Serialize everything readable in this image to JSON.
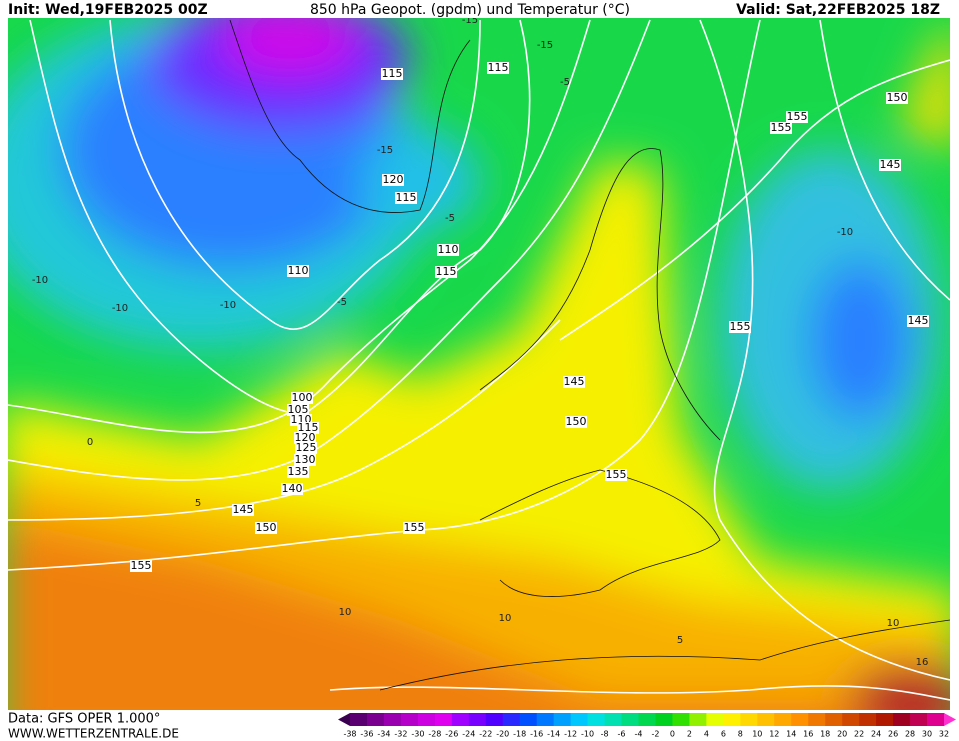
{
  "header": {
    "init": "Init: Wed,19FEB2025 00Z",
    "title": "850 hPa Geopot. (gpdm) und Temperatur (°C)",
    "valid": "Valid: Sat,22FEB2025 18Z"
  },
  "footer": {
    "data": "Data: GFS OPER 1.000°",
    "site": "WWW.WETTERZENTRALE.DE"
  },
  "colorbar": {
    "ticks": [
      -38,
      -36,
      -34,
      -32,
      -30,
      -28,
      -26,
      -24,
      -22,
      -20,
      -18,
      -16,
      -14,
      -12,
      -10,
      -8,
      -6,
      -4,
      -2,
      0,
      2,
      4,
      6,
      8,
      10,
      12,
      14,
      16,
      18,
      20,
      22,
      24,
      26,
      28,
      30,
      32
    ],
    "colors": [
      "#3a0050",
      "#5a0070",
      "#7a0090",
      "#9a00b0",
      "#b400c8",
      "#cc00e0",
      "#e000f0",
      "#a000ff",
      "#7800ff",
      "#5000ff",
      "#2828ff",
      "#0050ff",
      "#0078ff",
      "#00a0ff",
      "#00c8ff",
      "#00e0e0",
      "#00e0b0",
      "#00dc80",
      "#00d850",
      "#00d020",
      "#30e000",
      "#90f000",
      "#e6ff00",
      "#fff000",
      "#ffd800",
      "#ffc000",
      "#ffa800",
      "#ff9000",
      "#f07800",
      "#e06000",
      "#d04800",
      "#c03000",
      "#b01800",
      "#a00020",
      "#c00050",
      "#e00090",
      "#ff30d0"
    ]
  },
  "map": {
    "geopotential_labels": [
      "115",
      "115",
      "120",
      "115",
      "110",
      "115",
      "110",
      "150",
      "155",
      "155",
      "145",
      "155",
      "145",
      "145",
      "150",
      "100",
      "105",
      "110",
      "115",
      "120",
      "125",
      "130",
      "135",
      "140",
      "145",
      "150",
      "155",
      "155",
      "155"
    ],
    "temperature_labels": [
      "-15",
      "-15",
      "-5",
      "-10",
      "-5",
      "-10",
      "-5",
      "0",
      "5",
      "-10",
      "5",
      "10",
      "10",
      "16",
      "10",
      "-10",
      "-15"
    ]
  }
}
